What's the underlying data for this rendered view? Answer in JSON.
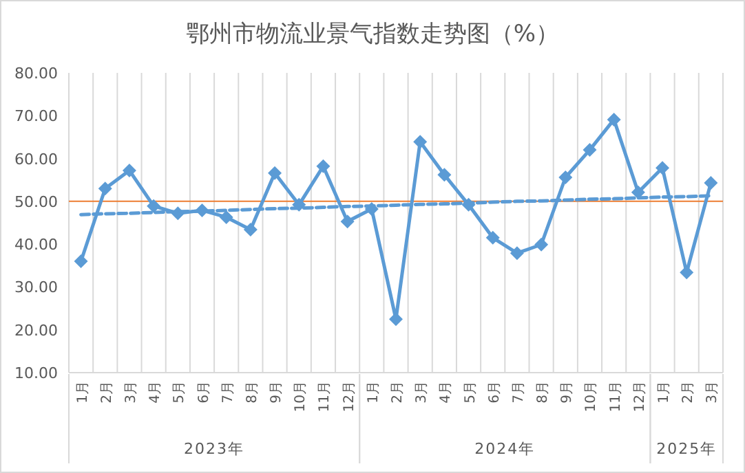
{
  "chart_data": {
    "type": "line",
    "title": "鄂州市物流业景气指数走势图（%）",
    "categories": [
      "1月",
      "2月",
      "3月",
      "4月",
      "5月",
      "6月",
      "7月",
      "8月",
      "9月",
      "10月",
      "11月",
      "12月",
      "1月",
      "2月",
      "3月",
      "4月",
      "5月",
      "6月",
      "7月",
      "8月",
      "9月",
      "10月",
      "11月",
      "12月",
      "1月",
      "2月",
      "3月"
    ],
    "series": [
      {
        "color": "#5b9bd5",
        "marker": "diamond",
        "line_style": "solid",
        "values": [
          36.0,
          53.0,
          57.2,
          48.9,
          47.2,
          47.9,
          46.3,
          43.4,
          56.6,
          49.2,
          58.2,
          45.3,
          48.2,
          22.5,
          63.9,
          56.2,
          49.2,
          41.5,
          37.9,
          39.9,
          55.6,
          62.0,
          69.1,
          52.1,
          57.8,
          33.4,
          54.3
        ]
      },
      {
        "color": "#5b9bd5",
        "marker": "none",
        "line_style": "dashed",
        "values": [
          46.9,
          47.1,
          47.2,
          47.4,
          47.6,
          47.7,
          47.9,
          48.1,
          48.3,
          48.4,
          48.6,
          48.8,
          48.9,
          49.1,
          49.3,
          49.4,
          49.6,
          49.8,
          50.0,
          50.1,
          50.3,
          50.5,
          50.6,
          50.8,
          51.0,
          51.1,
          51.3
        ]
      }
    ],
    "ylim": [
      10,
      80
    ],
    "yticks": [
      {
        "value": 10,
        "label": "10.00"
      },
      {
        "value": 20,
        "label": "20.00"
      },
      {
        "value": 30,
        "label": "30.00"
      },
      {
        "value": 40,
        "label": "40.00"
      },
      {
        "value": 50,
        "label": "50.00"
      },
      {
        "value": 60,
        "label": "60.00"
      },
      {
        "value": 70,
        "label": "70.00"
      },
      {
        "value": 80,
        "label": "80.00"
      }
    ],
    "grid": "x",
    "ref_lines": [
      {
        "axis": "y",
        "value": 50,
        "color": "#ed7d31"
      }
    ],
    "annotations": [
      "2023年",
      "2024年",
      "2025年"
    ]
  }
}
